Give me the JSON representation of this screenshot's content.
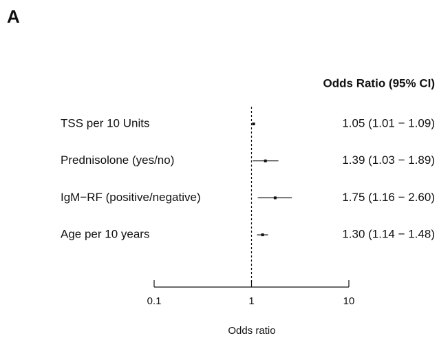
{
  "chart_data": {
    "type": "forest",
    "panel_label": "A",
    "column_header": "Odds Ratio (95% CI)",
    "xlabel": "Odds ratio",
    "categories": [
      "TSS per 10 Units",
      "Prednisolone (yes/no)",
      "IgM−RF (positive/negative)",
      "Age per 10 years"
    ],
    "values": [
      1.05,
      1.39,
      1.75,
      1.3
    ],
    "lower": [
      1.01,
      1.03,
      1.16,
      1.14
    ],
    "upper": [
      1.09,
      1.89,
      2.6,
      1.48
    ],
    "value_labels": [
      "1.05 (1.01 − 1.09)",
      "1.39 (1.03 − 1.89)",
      "1.75 (1.16 − 2.60)",
      "1.30 (1.14 − 1.48)"
    ],
    "xlim": [
      0.1,
      10
    ],
    "xticks": [
      0.1,
      1,
      10
    ],
    "log_x": true,
    "reference_line": 1,
    "color": "#111111"
  }
}
